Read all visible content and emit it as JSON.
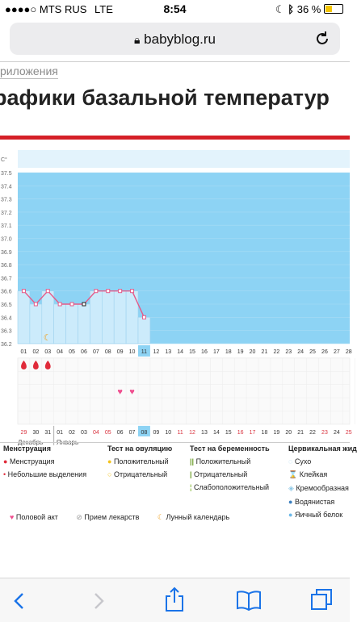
{
  "status": {
    "carrier": "MTS RUS",
    "network": "LTE",
    "time": "8:54",
    "battery": "36 %"
  },
  "browser": {
    "url": "babyblog.ru"
  },
  "breadcrumb": "риложения",
  "page_title": "рафики базальной температур",
  "chart": {
    "unit": "C°",
    "y_ticks": [
      "37.5",
      "37.4",
      "37.3",
      "37.2",
      "37.1",
      "37.0",
      "36.9",
      "36.8",
      "36.7",
      "36.6",
      "36.5",
      "36.4",
      "36.3",
      "36.2"
    ],
    "days": [
      "01",
      "02",
      "03",
      "04",
      "05",
      "06",
      "07",
      "08",
      "09",
      "10",
      "11",
      "12",
      "13",
      "14",
      "15",
      "16",
      "17",
      "18",
      "19",
      "20",
      "21",
      "22",
      "23",
      "24",
      "25",
      "26",
      "27",
      "28"
    ],
    "highlight_day": "11",
    "temperatures": [
      36.6,
      36.5,
      36.6,
      36.5,
      36.5,
      36.5,
      36.6,
      36.6,
      36.6,
      36.6,
      36.4
    ],
    "dates": [
      "29",
      "30",
      "31",
      "01",
      "02",
      "03",
      "04",
      "05",
      "06",
      "07",
      "08",
      "09",
      "10",
      "11",
      "12",
      "13",
      "14",
      "15",
      "16",
      "17",
      "18",
      "19",
      "20",
      "21",
      "22",
      "23",
      "24",
      "25"
    ],
    "date_colors": [
      "#d9333f",
      "#333",
      "#333",
      "#333",
      "#333",
      "#333",
      "#d9333f",
      "#d9333f",
      "#333",
      "#333",
      "#333",
      "#333",
      "#333",
      "#d9333f",
      "#d9333f",
      "#333",
      "#333",
      "#333",
      "#d9333f",
      "#d9333f",
      "#333",
      "#333",
      "#333",
      "#333",
      "#333",
      "#d9333f",
      "#333",
      "#d9333f"
    ],
    "highlight_date": "08",
    "month_left": "Декабрь",
    "month_right": "Январь",
    "accent": "#8dd3f4",
    "line_color": "#e55a88"
  },
  "legend": {
    "menstruation": {
      "title": "Менструация",
      "items": [
        "Менструация",
        "Небольшие выделения"
      ]
    },
    "ovulation": {
      "title": "Тест на овуляцию",
      "items": [
        "Положительный",
        "Отрицательный"
      ]
    },
    "pregnancy": {
      "title": "Тест на беременность",
      "items": [
        "Положительный",
        "Отрицательный",
        "Слабоположительный"
      ]
    },
    "cervical": {
      "title": "Цервикальная жид",
      "items": [
        "Сухо",
        "Клейкая",
        "Кремообразная",
        "Водянистая",
        "Яичный белок"
      ]
    },
    "bottom": [
      "Половой акт",
      "Прием лекарств",
      "Лунный календарь"
    ]
  }
}
